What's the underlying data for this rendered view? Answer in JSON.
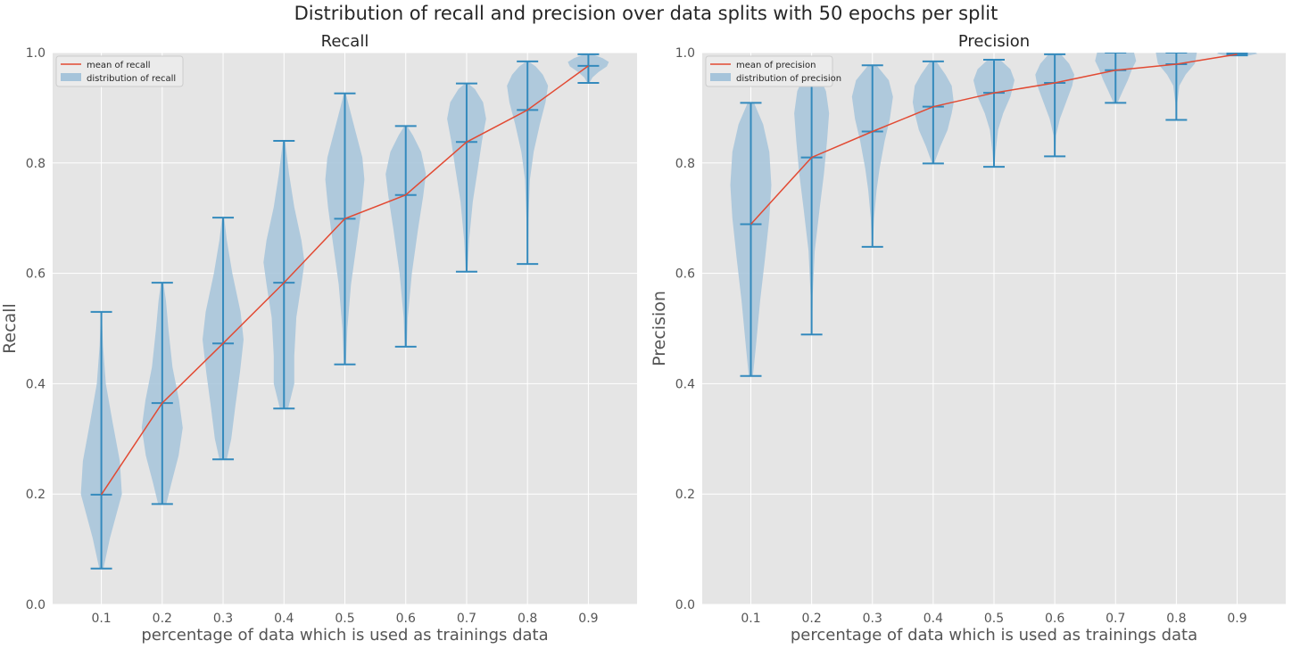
{
  "figure": {
    "suptitle": "Distribution of recall and precision over data splits with 50 epochs per split"
  },
  "colors": {
    "background": "#e5e5e5",
    "grid": "#ffffff",
    "mean_line": "#e24a33",
    "violin_fill": "#a6c4da",
    "violin_stroke": "#348abd",
    "text": "#555555"
  },
  "chart_data": [
    {
      "type": "violin",
      "title": "Recall",
      "xlabel": "percentage of data which is used as trainings data",
      "ylabel": "Recall",
      "ylim": [
        0,
        1
      ],
      "xticks": [
        0.1,
        0.2,
        0.3,
        0.4,
        0.5,
        0.6,
        0.7,
        0.8,
        0.9
      ],
      "yticks": [
        0.0,
        0.2,
        0.4,
        0.6,
        0.8,
        1.0
      ],
      "grid": true,
      "legend_position": "top-left",
      "legend": [
        "mean of recall",
        "distribution of recall"
      ],
      "mean_series": {
        "name": "mean of recall",
        "x": [
          0.1,
          0.2,
          0.3,
          0.4,
          0.5,
          0.6,
          0.7,
          0.8,
          0.9
        ],
        "values": [
          0.199,
          0.365,
          0.473,
          0.583,
          0.699,
          0.742,
          0.838,
          0.896,
          0.976
        ]
      },
      "distributions": [
        {
          "x": 0.1,
          "min": 0.065,
          "max": 0.53,
          "mean": 0.199,
          "profile": [
            [
              0.065,
              0.1
            ],
            [
              0.12,
              0.42
            ],
            [
              0.2,
              1.0
            ],
            [
              0.26,
              0.9
            ],
            [
              0.33,
              0.55
            ],
            [
              0.4,
              0.22
            ],
            [
              0.47,
              0.08
            ],
            [
              0.53,
              0.02
            ]
          ]
        },
        {
          "x": 0.2,
          "min": 0.182,
          "max": 0.583,
          "mean": 0.365,
          "profile": [
            [
              0.182,
              0.2
            ],
            [
              0.22,
              0.45
            ],
            [
              0.27,
              0.8
            ],
            [
              0.32,
              1.0
            ],
            [
              0.37,
              0.82
            ],
            [
              0.43,
              0.5
            ],
            [
              0.5,
              0.3
            ],
            [
              0.55,
              0.18
            ],
            [
              0.583,
              0.06
            ]
          ]
        },
        {
          "x": 0.3,
          "min": 0.263,
          "max": 0.701,
          "mean": 0.473,
          "profile": [
            [
              0.263,
              0.18
            ],
            [
              0.3,
              0.4
            ],
            [
              0.36,
              0.6
            ],
            [
              0.42,
              0.82
            ],
            [
              0.48,
              1.0
            ],
            [
              0.53,
              0.85
            ],
            [
              0.6,
              0.45
            ],
            [
              0.66,
              0.18
            ],
            [
              0.701,
              0.05
            ]
          ]
        },
        {
          "x": 0.4,
          "min": 0.355,
          "max": 0.84,
          "mean": 0.583,
          "profile": [
            [
              0.355,
              0.2
            ],
            [
              0.4,
              0.5
            ],
            [
              0.45,
              0.5
            ],
            [
              0.52,
              0.6
            ],
            [
              0.58,
              0.85
            ],
            [
              0.62,
              1.0
            ],
            [
              0.66,
              0.85
            ],
            [
              0.72,
              0.5
            ],
            [
              0.78,
              0.25
            ],
            [
              0.84,
              0.05
            ]
          ]
        },
        {
          "x": 0.5,
          "min": 0.435,
          "max": 0.926,
          "mean": 0.699,
          "profile": [
            [
              0.435,
              0.05
            ],
            [
              0.5,
              0.12
            ],
            [
              0.58,
              0.3
            ],
            [
              0.66,
              0.6
            ],
            [
              0.72,
              0.82
            ],
            [
              0.77,
              0.95
            ],
            [
              0.81,
              0.85
            ],
            [
              0.86,
              0.5
            ],
            [
              0.9,
              0.22
            ],
            [
              0.926,
              0.05
            ]
          ]
        },
        {
          "x": 0.6,
          "min": 0.467,
          "max": 0.867,
          "mean": 0.742,
          "profile": [
            [
              0.467,
              0.05
            ],
            [
              0.52,
              0.1
            ],
            [
              0.6,
              0.3
            ],
            [
              0.68,
              0.6
            ],
            [
              0.74,
              0.85
            ],
            [
              0.78,
              0.98
            ],
            [
              0.82,
              0.75
            ],
            [
              0.85,
              0.35
            ],
            [
              0.867,
              0.06
            ]
          ]
        },
        {
          "x": 0.7,
          "min": 0.603,
          "max": 0.944,
          "mean": 0.838,
          "profile": [
            [
              0.603,
              0.04
            ],
            [
              0.66,
              0.12
            ],
            [
              0.73,
              0.3
            ],
            [
              0.79,
              0.55
            ],
            [
              0.84,
              0.75
            ],
            [
              0.88,
              0.95
            ],
            [
              0.91,
              0.8
            ],
            [
              0.934,
              0.4
            ],
            [
              0.944,
              0.08
            ]
          ]
        },
        {
          "x": 0.8,
          "min": 0.617,
          "max": 0.984,
          "mean": 0.896,
          "profile": [
            [
              0.617,
              0.02
            ],
            [
              0.7,
              0.05
            ],
            [
              0.77,
              0.12
            ],
            [
              0.82,
              0.3
            ],
            [
              0.87,
              0.6
            ],
            [
              0.91,
              0.88
            ],
            [
              0.94,
              1.0
            ],
            [
              0.96,
              0.75
            ],
            [
              0.975,
              0.4
            ],
            [
              0.984,
              0.05
            ]
          ]
        },
        {
          "x": 0.9,
          "min": 0.945,
          "max": 0.997,
          "mean": 0.976,
          "profile": [
            [
              0.945,
              0.05
            ],
            [
              0.955,
              0.2
            ],
            [
              0.965,
              0.5
            ],
            [
              0.975,
              0.9
            ],
            [
              0.983,
              1.0
            ],
            [
              0.99,
              0.7
            ],
            [
              0.997,
              0.2
            ]
          ]
        }
      ]
    },
    {
      "type": "violin",
      "title": "Precision",
      "xlabel": "percentage of data which is used as trainings data",
      "ylabel": "Precision",
      "ylim": [
        0,
        1
      ],
      "xticks": [
        0.1,
        0.2,
        0.3,
        0.4,
        0.5,
        0.6,
        0.7,
        0.8,
        0.9
      ],
      "yticks": [
        0.0,
        0.2,
        0.4,
        0.6,
        0.8,
        1.0
      ],
      "grid": true,
      "legend_position": "top-left",
      "legend": [
        "mean of precision",
        "distribution of precision"
      ],
      "mean_series": {
        "name": "mean of precision",
        "x": [
          0.1,
          0.2,
          0.3,
          0.4,
          0.5,
          0.6,
          0.7,
          0.8,
          0.9
        ],
        "values": [
          0.689,
          0.81,
          0.857,
          0.902,
          0.927,
          0.945,
          0.968,
          0.979,
          0.997
        ]
      },
      "distributions": [
        {
          "x": 0.1,
          "min": 0.414,
          "max": 0.909,
          "mean": 0.689,
          "profile": [
            [
              0.414,
              0.1
            ],
            [
              0.47,
              0.25
            ],
            [
              0.55,
              0.45
            ],
            [
              0.63,
              0.7
            ],
            [
              0.7,
              0.9
            ],
            [
              0.76,
              1.0
            ],
            [
              0.82,
              0.9
            ],
            [
              0.87,
              0.6
            ],
            [
              0.909,
              0.15
            ]
          ]
        },
        {
          "x": 0.2,
          "min": 0.489,
          "max": 0.955,
          "mean": 0.81,
          "profile": [
            [
              0.489,
              0.02
            ],
            [
              0.56,
              0.05
            ],
            [
              0.64,
              0.15
            ],
            [
              0.72,
              0.4
            ],
            [
              0.78,
              0.6
            ],
            [
              0.84,
              0.75
            ],
            [
              0.89,
              0.85
            ],
            [
              0.93,
              0.7
            ],
            [
              0.955,
              0.4
            ]
          ]
        },
        {
          "x": 0.3,
          "min": 0.648,
          "max": 0.977,
          "mean": 0.857,
          "profile": [
            [
              0.648,
              0.02
            ],
            [
              0.7,
              0.08
            ],
            [
              0.75,
              0.2
            ],
            [
              0.79,
              0.35
            ],
            [
              0.84,
              0.6
            ],
            [
              0.88,
              0.85
            ],
            [
              0.92,
              1.0
            ],
            [
              0.95,
              0.8
            ],
            [
              0.977,
              0.2
            ]
          ]
        },
        {
          "x": 0.4,
          "min": 0.799,
          "max": 0.984,
          "mean": 0.902,
          "profile": [
            [
              0.799,
              0.05
            ],
            [
              0.83,
              0.35
            ],
            [
              0.86,
              0.7
            ],
            [
              0.89,
              0.9
            ],
            [
              0.91,
              1.0
            ],
            [
              0.94,
              0.9
            ],
            [
              0.96,
              0.6
            ],
            [
              0.984,
              0.15
            ]
          ]
        },
        {
          "x": 0.5,
          "min": 0.793,
          "max": 0.987,
          "mean": 0.927,
          "profile": [
            [
              0.793,
              0.02
            ],
            [
              0.82,
              0.08
            ],
            [
              0.86,
              0.2
            ],
            [
              0.89,
              0.45
            ],
            [
              0.92,
              0.8
            ],
            [
              0.95,
              1.0
            ],
            [
              0.97,
              0.8
            ],
            [
              0.987,
              0.3
            ]
          ]
        },
        {
          "x": 0.6,
          "min": 0.812,
          "max": 0.997,
          "mean": 0.945,
          "profile": [
            [
              0.812,
              0.02
            ],
            [
              0.85,
              0.06
            ],
            [
              0.88,
              0.25
            ],
            [
              0.91,
              0.55
            ],
            [
              0.94,
              0.85
            ],
            [
              0.96,
              0.95
            ],
            [
              0.98,
              0.7
            ],
            [
              0.997,
              0.3
            ]
          ]
        },
        {
          "x": 0.7,
          "min": 0.909,
          "max": 1.0,
          "mean": 0.968,
          "profile": [
            [
              0.909,
              0.1
            ],
            [
              0.93,
              0.35
            ],
            [
              0.95,
              0.6
            ],
            [
              0.97,
              0.8
            ],
            [
              0.985,
              1.0
            ],
            [
              1.0,
              0.9
            ]
          ]
        },
        {
          "x": 0.8,
          "min": 0.878,
          "max": 1.0,
          "mean": 0.979,
          "profile": [
            [
              0.878,
              0.01
            ],
            [
              0.91,
              0.05
            ],
            [
              0.94,
              0.15
            ],
            [
              0.96,
              0.45
            ],
            [
              0.98,
              0.9
            ],
            [
              1.0,
              1.0
            ]
          ]
        },
        {
          "x": 0.9,
          "min": 0.995,
          "max": 1.0,
          "mean": 0.997,
          "profile": [
            [
              0.995,
              0.6
            ],
            [
              0.998,
              1.0
            ],
            [
              1.0,
              0.9
            ]
          ]
        }
      ]
    }
  ]
}
